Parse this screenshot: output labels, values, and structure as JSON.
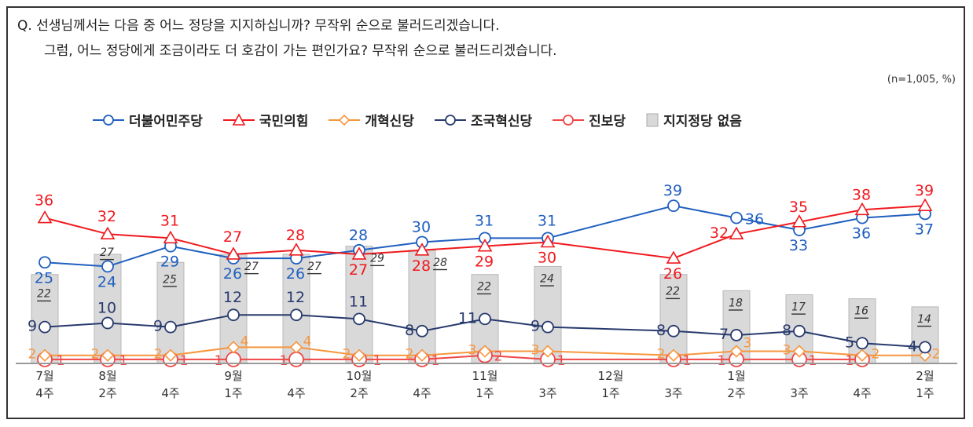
{
  "question": {
    "line1": "Q. 선생님께서는 다음 중 어느 정당을 지지하십니까? 무작위 순으로 불러드리겠습니다.",
    "line2": "그럼, 어느 정당에게 조금이라도 더 호감이 가는 편인가요? 무작위 순으로 불러드리겠습니다."
  },
  "unit_note": "(n=1,005, %)",
  "chart_data": {
    "type": "line",
    "categories": [
      [
        "7월",
        "4주"
      ],
      [
        "8월",
        "2주"
      ],
      [
        "",
        "4주"
      ],
      [
        "9월",
        "1주"
      ],
      [
        "",
        "4주"
      ],
      [
        "10월",
        "2주"
      ],
      [
        "",
        "4주"
      ],
      [
        "11월",
        "1주"
      ],
      [
        "",
        "3주"
      ],
      [
        "12월",
        "1주"
      ],
      [
        "",
        "3주"
      ],
      [
        "1월",
        "2주"
      ],
      [
        "",
        "3주"
      ],
      [
        "",
        "4주"
      ],
      [
        "2월",
        "1주"
      ]
    ],
    "ylim": [
      0,
      42
    ],
    "grid": false,
    "legend_position": "top",
    "series": [
      {
        "name": "더불어민주당",
        "kind": "line",
        "marker": "circle",
        "color": "#1f5fbf",
        "values": [
          25,
          24,
          29,
          26,
          26,
          28,
          30,
          31,
          31,
          null,
          39,
          36,
          33,
          36,
          37
        ]
      },
      {
        "name": "국민의힘",
        "kind": "line",
        "marker": "triangle",
        "color": "#f0191e",
        "values": [
          36,
          32,
          31,
          27,
          28,
          27,
          28,
          29,
          30,
          null,
          26,
          32,
          35,
          38,
          39
        ]
      },
      {
        "name": "개혁신당",
        "kind": "line",
        "marker": "diamond",
        "color": "#f7963c",
        "values": [
          2,
          2,
          2,
          4,
          4,
          2,
          2,
          3,
          3,
          null,
          2,
          3,
          3,
          2,
          2
        ]
      },
      {
        "name": "조국혁신당",
        "kind": "line",
        "marker": "circle",
        "color": "#283a6e",
        "values": [
          9,
          10,
          9,
          12,
          12,
          11,
          8,
          11,
          9,
          null,
          8,
          7,
          8,
          5,
          4
        ]
      },
      {
        "name": "진보당",
        "kind": "line",
        "marker": "circle",
        "color": "#f04646",
        "values": [
          1,
          1,
          1,
          1,
          1,
          1,
          1,
          2,
          1,
          null,
          1,
          1,
          1,
          1,
          null
        ]
      },
      {
        "name": "지지정당 없음",
        "kind": "bar",
        "color": "#d9d9d9",
        "values": [
          22,
          27,
          25,
          27,
          27,
          29,
          28,
          22,
          24,
          null,
          22,
          18,
          17,
          16,
          14
        ]
      }
    ]
  }
}
